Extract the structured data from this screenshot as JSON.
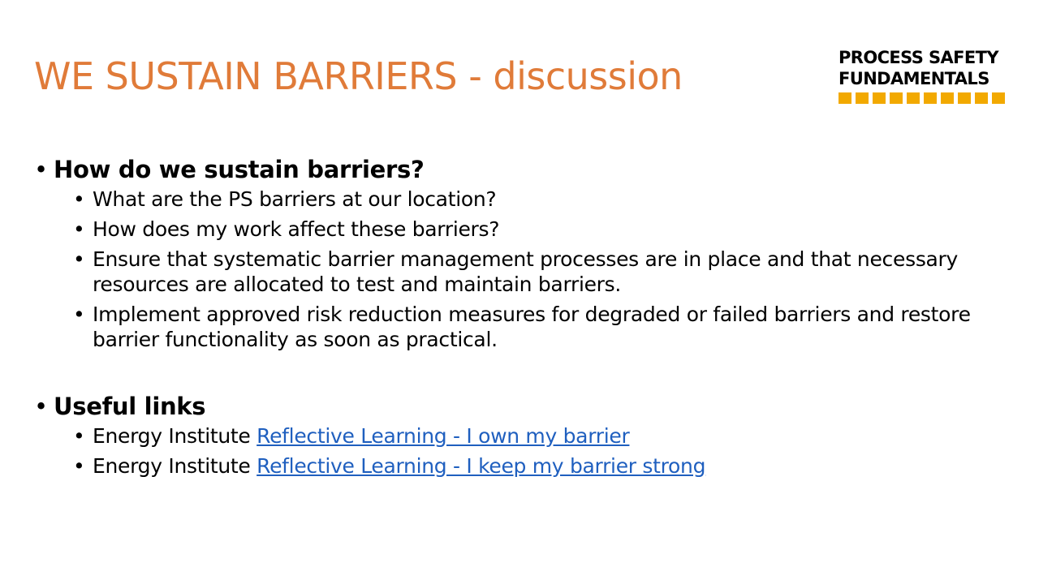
{
  "slide": {
    "title": "WE SUSTAIN BARRIERS - discussion",
    "title_color": "#E07B39",
    "logo": {
      "line1": "PROCESS SAFETY",
      "line2": "FUNDAMENTALS",
      "bar_color": "#F2A900",
      "bar_segments": 10
    },
    "bullet_glyph": "•",
    "sections": [
      {
        "heading": "How do we sustain barriers?",
        "items": [
          {
            "text": "What are the PS barriers at our location?"
          },
          {
            "text": "How does my work affect these barriers?"
          },
          {
            "text": "Ensure that systematic barrier management processes are in place and that necessary resources are allocated to test and maintain barriers."
          },
          {
            "text": "Implement approved risk reduction measures for degraded or failed barriers and restore barrier functionality as soon as practical."
          }
        ]
      },
      {
        "heading": "Useful links",
        "items": [
          {
            "prefix": "Energy Institute ",
            "link_text": "Reflective Learning - I own my barrier"
          },
          {
            "prefix": "Energy Institute ",
            "link_text": "Reflective Learning - I keep my barrier strong"
          }
        ]
      }
    ],
    "link_color": "#1F5FBF"
  }
}
